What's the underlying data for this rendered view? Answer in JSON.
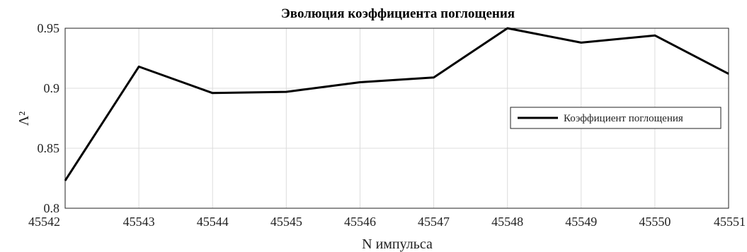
{
  "chart_data": {
    "type": "line",
    "title": "Эволюция коэффициента поглощения",
    "xlabel": "N импульса",
    "ylabel": "Λ²",
    "x": [
      45542,
      45543,
      45544,
      45545,
      45546,
      45547,
      45548,
      45549,
      45550,
      45551
    ],
    "xlim": [
      45542,
      45551
    ],
    "ylim": [
      0.8,
      0.95
    ],
    "xticks": [
      "45542",
      "45543",
      "45544",
      "45545",
      "45546",
      "45547",
      "45548",
      "45549",
      "45550",
      "45551"
    ],
    "yticks": [
      "0.8",
      "0.85",
      "0.9",
      "0.95"
    ],
    "grid": true,
    "legend_position": "right",
    "series": [
      {
        "name": "Коэффициент поглощения",
        "color": "#000000",
        "values": [
          0.823,
          0.918,
          0.896,
          0.897,
          0.905,
          0.909,
          0.95,
          0.938,
          0.944,
          0.912
        ]
      }
    ]
  }
}
